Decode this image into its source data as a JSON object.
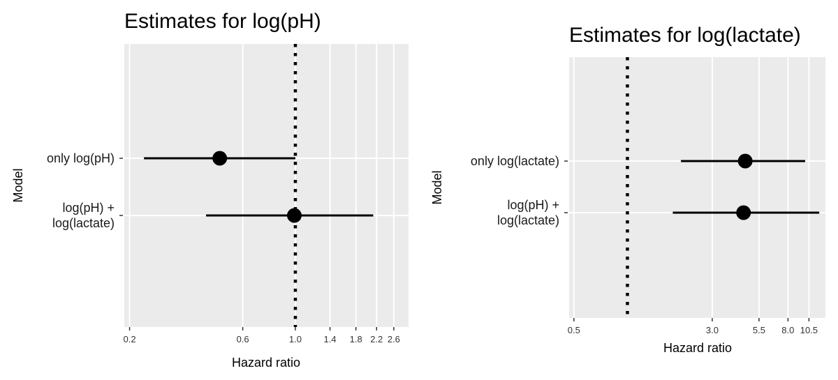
{
  "chart_data": [
    {
      "type": "forest",
      "title": "Estimates for log(pH)",
      "xlabel": "Hazard ratio",
      "ylabel": "Model",
      "x_scale": "log",
      "xlim": [
        0.19,
        3.0
      ],
      "reference_line": 1.0,
      "x_ticks": [
        0.2,
        0.6,
        1.0,
        1.4,
        1.8,
        2.2,
        2.6
      ],
      "x_tick_labels": [
        "0.2",
        "0.6",
        "1.0",
        "1.4",
        "1.8",
        "2.2",
        "2.6"
      ],
      "categories": [
        "only log(pH)",
        "log(pH) +\nlog(lactate)"
      ],
      "estimates": [
        0.48,
        0.99
      ],
      "lower": [
        0.23,
        0.42
      ],
      "upper": [
        1.0,
        2.13
      ]
    },
    {
      "type": "forest",
      "title": "Estimates for log(lactate)",
      "xlabel": "Hazard ratio",
      "ylabel": "Model",
      "x_scale": "log",
      "xlim": [
        0.47,
        13.0
      ],
      "reference_line": 1.0,
      "x_ticks": [
        0.5,
        3.0,
        5.5,
        8.0,
        10.5
      ],
      "x_tick_labels": [
        "0.5",
        "3.0",
        "5.5",
        "8.0",
        "10.5"
      ],
      "categories": [
        "only log(lactate)",
        "log(pH) +\nlog(lactate)"
      ],
      "estimates": [
        4.6,
        4.5
      ],
      "lower": [
        2.0,
        1.8
      ],
      "upper": [
        10.0,
        12.0
      ]
    }
  ]
}
